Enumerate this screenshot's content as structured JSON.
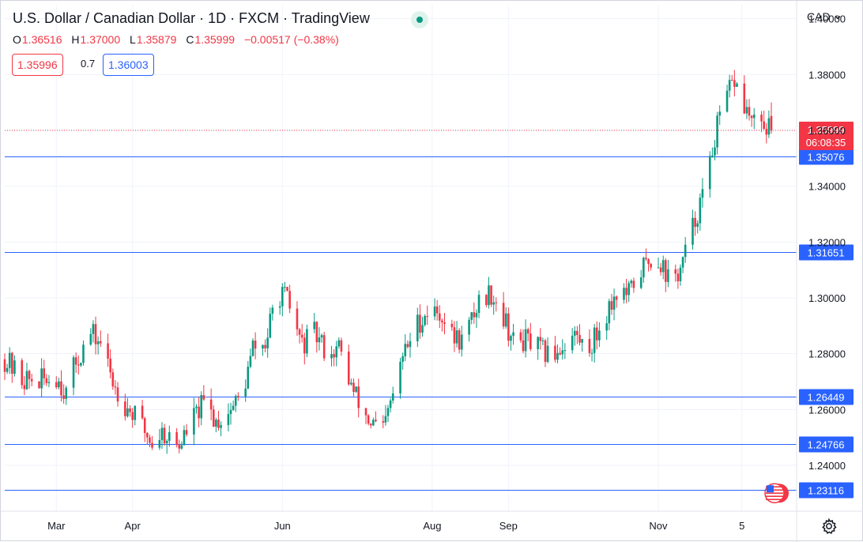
{
  "header": {
    "title": "U.S. Dollar / Canadian Dollar · 1D · FXCM · TradingView",
    "ohlc": [
      {
        "label": "O",
        "value": "1.36516"
      },
      {
        "label": "H",
        "value": "1.37000"
      },
      {
        "label": "L",
        "value": "1.35879"
      },
      {
        "label": "C",
        "value": "1.35999"
      },
      {
        "label": "",
        "value": "−0.00517 (−0.38%)"
      }
    ],
    "sell_price": "1.35996",
    "spread": "0.7",
    "buy_price": "1.36003",
    "currency_selector": "CAD"
  },
  "colors": {
    "up": "#089981",
    "down": "#f23645",
    "level_line": "#2962ff",
    "grid": "#f0f3fa",
    "text": "#131722"
  },
  "icons": {
    "currency_dropdown": "chevron-down-icon",
    "settings": "gear-icon",
    "flag": "us-flag-icon",
    "status": "market-open-dot-icon"
  },
  "chart_data": {
    "type": "candlestick",
    "ylim": [
      1.225,
      1.405
    ],
    "y_ticks": [
      "1.24000",
      "1.26000",
      "1.28000",
      "1.30000",
      "1.32000",
      "1.34000",
      "1.36000",
      "1.38000",
      "1.40000"
    ],
    "x_tick_labels": [
      "Mar",
      "Apr",
      "Jun",
      "Aug",
      "Sep",
      "Nov",
      "5"
    ],
    "x_tick_dates": [
      "2021-03-01",
      "2021-04-01",
      "2021-06-01",
      "2021-08-01",
      "2021-09-01",
      "2021-11-01",
      "2021-12-05"
    ],
    "date_range": [
      "2021-02-08",
      "2021-12-17"
    ],
    "horizontal_levels": [
      1.35076,
      1.31651,
      1.26449,
      1.24766,
      1.23116
    ],
    "level_labels": [
      "1.35076",
      "1.31651",
      "1.26449",
      "1.24766",
      "1.23116"
    ],
    "last_price": 1.35999,
    "last_price_label": "1.35999",
    "countdown": "06:08:35",
    "anchors": [
      [
        "2021-02-08",
        1.278
      ],
      [
        "2021-02-15",
        1.271
      ],
      [
        "2021-02-22",
        1.27
      ],
      [
        "2021-03-01",
        1.272
      ],
      [
        "2021-03-05",
        1.266
      ],
      [
        "2021-03-09",
        1.277
      ],
      [
        "2021-03-15",
        1.287
      ],
      [
        "2021-03-19",
        1.284
      ],
      [
        "2021-03-24",
        1.27
      ],
      [
        "2021-03-29",
        1.262
      ],
      [
        "2021-04-05",
        1.254
      ],
      [
        "2021-04-09",
        1.248
      ],
      [
        "2021-04-13",
        1.252
      ],
      [
        "2021-04-20",
        1.247
      ],
      [
        "2021-04-25",
        1.256
      ],
      [
        "2021-04-30",
        1.262
      ],
      [
        "2021-05-05",
        1.256
      ],
      [
        "2021-05-09",
        1.258
      ],
      [
        "2021-05-16",
        1.266
      ],
      [
        "2021-05-20",
        1.282
      ],
      [
        "2021-05-25",
        1.283
      ],
      [
        "2021-05-30",
        1.302
      ],
      [
        "2021-06-03",
        1.299
      ],
      [
        "2021-06-09",
        1.283
      ],
      [
        "2021-06-14",
        1.287
      ],
      [
        "2021-06-20",
        1.28
      ],
      [
        "2021-06-24",
        1.282
      ],
      [
        "2021-06-30",
        1.266
      ],
      [
        "2021-07-06",
        1.256
      ],
      [
        "2021-07-12",
        1.252
      ],
      [
        "2021-07-16",
        1.265
      ],
      [
        "2021-07-20",
        1.279
      ],
      [
        "2021-07-26",
        1.291
      ],
      [
        "2021-07-31",
        1.296
      ],
      [
        "2021-08-05",
        1.294
      ],
      [
        "2021-08-09",
        1.286
      ],
      [
        "2021-08-14",
        1.285
      ],
      [
        "2021-08-20",
        1.299
      ],
      [
        "2021-08-25",
        1.302
      ],
      [
        "2021-08-29",
        1.296
      ],
      [
        "2021-09-03",
        1.284
      ],
      [
        "2021-09-08",
        1.285
      ],
      [
        "2021-09-14",
        1.281
      ],
      [
        "2021-09-18",
        1.279
      ],
      [
        "2021-09-23",
        1.283
      ],
      [
        "2021-09-28",
        1.287
      ],
      [
        "2021-10-03",
        1.281
      ],
      [
        "2021-10-07",
        1.287
      ],
      [
        "2021-10-11",
        1.295
      ],
      [
        "2021-10-15",
        1.302
      ],
      [
        "2021-10-20",
        1.301
      ],
      [
        "2021-10-24",
        1.309
      ],
      [
        "2021-10-29",
        1.314
      ],
      [
        "2021-11-02",
        1.313
      ],
      [
        "2021-11-06",
        1.305
      ],
      [
        "2021-11-10",
        1.31
      ],
      [
        "2021-11-14",
        1.322
      ],
      [
        "2021-11-17",
        1.331
      ],
      [
        "2021-11-21",
        1.342
      ],
      [
        "2021-11-24",
        1.358
      ],
      [
        "2021-11-29",
        1.372
      ],
      [
        "2021-12-02",
        1.378
      ],
      [
        "2021-12-05",
        1.37
      ],
      [
        "2021-12-08",
        1.365
      ],
      [
        "2021-12-11",
        1.36
      ],
      [
        "2021-12-14",
        1.362
      ],
      [
        "2021-12-17",
        1.36
      ]
    ]
  }
}
